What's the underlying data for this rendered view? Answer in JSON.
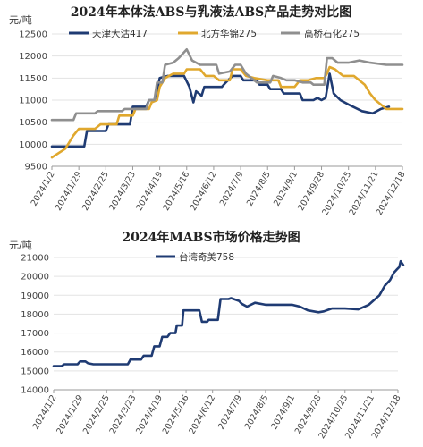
{
  "chart_data": [
    {
      "type": "line",
      "title": "2024年本体法ABS与乳液法ABS产品走势对比图",
      "ylabel": "元/吨",
      "ylim": [
        9500,
        12500
      ],
      "yticks": [
        9500,
        10000,
        10500,
        11000,
        11500,
        12000,
        12500
      ],
      "xticks": [
        "2024/1/2",
        "2024/1/29",
        "2024/2/25",
        "2024/3/23",
        "2024/4/19",
        "2024/5/16",
        "2024/6/12",
        "2024/7/9",
        "2024/8/5",
        "2024/9/1",
        "2024/9/28",
        "2024/10/25",
        "2024/11/21",
        "2024/12/18"
      ],
      "grid": "horizontal",
      "legend_position": "top",
      "series": [
        {
          "name": "天津大沽417",
          "color": "#1f3b73",
          "points": [
            [
              0,
              9950
            ],
            [
              1.2,
              9950
            ],
            [
              1.3,
              10300
            ],
            [
              2.0,
              10300
            ],
            [
              2.1,
              10450
            ],
            [
              2.9,
              10450
            ],
            [
              3.0,
              10850
            ],
            [
              3.5,
              10850
            ],
            [
              3.6,
              11000
            ],
            [
              3.8,
              11000
            ],
            [
              3.9,
              11200
            ],
            [
              4.0,
              11500
            ],
            [
              4.3,
              11550
            ],
            [
              4.9,
              11550
            ],
            [
              5.1,
              11300
            ],
            [
              5.25,
              10950
            ],
            [
              5.35,
              11200
            ],
            [
              5.55,
              11100
            ],
            [
              5.65,
              11300
            ],
            [
              6.3,
              11300
            ],
            [
              6.45,
              11400
            ],
            [
              6.7,
              11550
            ],
            [
              7.0,
              11550
            ],
            [
              7.1,
              11450
            ],
            [
              7.6,
              11450
            ],
            [
              7.7,
              11350
            ],
            [
              8.0,
              11350
            ],
            [
              8.1,
              11250
            ],
            [
              8.5,
              11250
            ],
            [
              8.6,
              11150
            ],
            [
              9.2,
              11150
            ],
            [
              9.3,
              11000
            ],
            [
              9.7,
              11000
            ],
            [
              9.85,
              11050
            ],
            [
              10.0,
              11000
            ],
            [
              10.15,
              11050
            ],
            [
              10.3,
              11600
            ],
            [
              10.45,
              11150
            ],
            [
              10.7,
              11000
            ],
            [
              11.0,
              10900
            ],
            [
              11.5,
              10750
            ],
            [
              11.9,
              10700
            ],
            [
              12.2,
              10800
            ],
            [
              12.5,
              10850
            ]
          ]
        },
        {
          "name": "北方华锦275",
          "color": "#e0a82e",
          "points": [
            [
              0,
              9700
            ],
            [
              0.5,
              9900
            ],
            [
              0.8,
              10200
            ],
            [
              1.0,
              10350
            ],
            [
              1.6,
              10350
            ],
            [
              1.8,
              10450
            ],
            [
              2.4,
              10450
            ],
            [
              2.5,
              10650
            ],
            [
              3.0,
              10650
            ],
            [
              3.1,
              10800
            ],
            [
              3.6,
              10800
            ],
            [
              3.7,
              10950
            ],
            [
              3.9,
              11000
            ],
            [
              4.0,
              11300
            ],
            [
              4.2,
              11500
            ],
            [
              4.5,
              11600
            ],
            [
              4.9,
              11600
            ],
            [
              5.0,
              11700
            ],
            [
              5.5,
              11700
            ],
            [
              5.7,
              11550
            ],
            [
              6.0,
              11550
            ],
            [
              6.2,
              11450
            ],
            [
              6.6,
              11450
            ],
            [
              6.7,
              11700
            ],
            [
              7.0,
              11700
            ],
            [
              7.2,
              11550
            ],
            [
              7.5,
              11500
            ],
            [
              8.0,
              11450
            ],
            [
              8.4,
              11450
            ],
            [
              8.5,
              11300
            ],
            [
              9.0,
              11300
            ],
            [
              9.2,
              11450
            ],
            [
              9.5,
              11450
            ],
            [
              9.8,
              11500
            ],
            [
              10.1,
              11500
            ],
            [
              10.2,
              11600
            ],
            [
              10.3,
              11750
            ],
            [
              10.5,
              11700
            ],
            [
              10.8,
              11550
            ],
            [
              11.2,
              11550
            ],
            [
              11.4,
              11450
            ],
            [
              11.6,
              11350
            ],
            [
              11.8,
              11150
            ],
            [
              12.0,
              11000
            ],
            [
              12.2,
              10900
            ],
            [
              12.4,
              10800
            ],
            [
              13.0,
              10800
            ]
          ]
        },
        {
          "name": "高桥石化275",
          "color": "#8f8f8f",
          "points": [
            [
              0,
              10550
            ],
            [
              0.8,
              10550
            ],
            [
              0.9,
              10700
            ],
            [
              1.6,
              10700
            ],
            [
              1.7,
              10750
            ],
            [
              2.6,
              10750
            ],
            [
              2.7,
              10800
            ],
            [
              3.5,
              10800
            ],
            [
              3.6,
              11000
            ],
            [
              3.8,
              11000
            ],
            [
              3.9,
              11400
            ],
            [
              4.1,
              11400
            ],
            [
              4.2,
              11800
            ],
            [
              4.5,
              11850
            ],
            [
              4.7,
              11950
            ],
            [
              5.0,
              12150
            ],
            [
              5.2,
              11900
            ],
            [
              5.5,
              11800
            ],
            [
              6.1,
              11800
            ],
            [
              6.2,
              11600
            ],
            [
              6.6,
              11650
            ],
            [
              6.8,
              11800
            ],
            [
              7.0,
              11800
            ],
            [
              7.2,
              11600
            ],
            [
              7.6,
              11400
            ],
            [
              8.1,
              11400
            ],
            [
              8.2,
              11550
            ],
            [
              8.5,
              11500
            ],
            [
              8.7,
              11450
            ],
            [
              9.0,
              11450
            ],
            [
              9.3,
              11400
            ],
            [
              9.6,
              11400
            ],
            [
              9.7,
              11350
            ],
            [
              10.1,
              11350
            ],
            [
              10.2,
              11950
            ],
            [
              10.4,
              11950
            ],
            [
              10.6,
              11850
            ],
            [
              11.0,
              11850
            ],
            [
              11.4,
              11900
            ],
            [
              11.8,
              11850
            ],
            [
              12.4,
              11800
            ],
            [
              13.0,
              11800
            ]
          ]
        }
      ]
    },
    {
      "type": "line",
      "title": "2024年MABS市场价格走势图",
      "ylabel": "元/吨",
      "ylim": [
        14000,
        21000
      ],
      "yticks": [
        14000,
        15000,
        16000,
        17000,
        18000,
        19000,
        20000,
        21000
      ],
      "xticks": [
        "2024/1/2",
        "2024/1/29",
        "2024/2/25",
        "2024/3/23",
        "2024/4/19",
        "2024/5/16",
        "2024/6/12",
        "2024/7/9",
        "2024/8/5",
        "2024/9/1",
        "2024/9/28",
        "2024/10/25",
        "2024/11/21",
        "2024/12/18"
      ],
      "grid": "horizontal",
      "legend_position": "top",
      "series": [
        {
          "name": "台湾奇美758",
          "color": "#1f3b73",
          "points": [
            [
              0,
              15250
            ],
            [
              0.3,
              15250
            ],
            [
              0.4,
              15350
            ],
            [
              0.9,
              15350
            ],
            [
              1.0,
              15500
            ],
            [
              1.2,
              15500
            ],
            [
              1.3,
              15400
            ],
            [
              1.5,
              15350
            ],
            [
              2.8,
              15350
            ],
            [
              2.9,
              15600
            ],
            [
              3.3,
              15600
            ],
            [
              3.4,
              15800
            ],
            [
              3.7,
              15800
            ],
            [
              3.8,
              16300
            ],
            [
              4.0,
              16300
            ],
            [
              4.1,
              16800
            ],
            [
              4.3,
              16800
            ],
            [
              4.4,
              17000
            ],
            [
              4.6,
              17000
            ],
            [
              4.65,
              17400
            ],
            [
              4.85,
              17400
            ],
            [
              4.9,
              18200
            ],
            [
              5.5,
              18200
            ],
            [
              5.6,
              17600
            ],
            [
              5.8,
              17600
            ],
            [
              5.85,
              17700
            ],
            [
              6.2,
              17700
            ],
            [
              6.3,
              18800
            ],
            [
              6.6,
              18800
            ],
            [
              6.7,
              18850
            ],
            [
              7.0,
              18700
            ],
            [
              7.1,
              18550
            ],
            [
              7.3,
              18400
            ],
            [
              7.6,
              18600
            ],
            [
              8.0,
              18500
            ],
            [
              9.0,
              18500
            ],
            [
              9.3,
              18400
            ],
            [
              9.6,
              18200
            ],
            [
              10.0,
              18100
            ],
            [
              10.2,
              18150
            ],
            [
              10.5,
              18300
            ],
            [
              11.0,
              18300
            ],
            [
              11.5,
              18250
            ],
            [
              11.9,
              18500
            ],
            [
              12.3,
              19000
            ],
            [
              12.5,
              19500
            ],
            [
              12.7,
              19800
            ],
            [
              12.85,
              20200
            ],
            [
              12.95,
              20350
            ],
            [
              13.05,
              20500
            ],
            [
              13.1,
              20800
            ],
            [
              13.2,
              20600
            ]
          ]
        }
      ]
    }
  ]
}
